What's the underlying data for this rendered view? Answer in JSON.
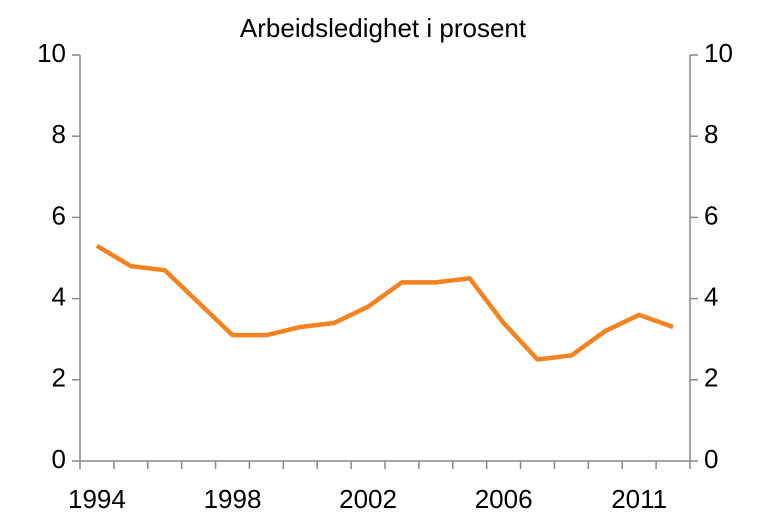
{
  "chart_data": {
    "type": "line",
    "title": "Arbeidsledighet i prosent",
    "categories": [
      "1994",
      null,
      null,
      null,
      "1998",
      null,
      null,
      null,
      "2002",
      null,
      null,
      null,
      "2006",
      null,
      null,
      null,
      "2011",
      null
    ],
    "series": [
      {
        "name": "Arbeidsledighet",
        "color": "#f5821f",
        "values": [
          5.3,
          4.8,
          4.7,
          3.9,
          3.1,
          3.1,
          3.3,
          3.4,
          3.8,
          4.4,
          4.4,
          4.5,
          3.4,
          2.5,
          2.6,
          3.2,
          3.6,
          3.3
        ]
      }
    ],
    "ylim": [
      0,
      10
    ],
    "yticks": [
      0,
      2,
      4,
      6,
      8,
      10
    ],
    "y2lim": [
      0,
      10
    ],
    "y2ticks": [
      0,
      2,
      4,
      6,
      8,
      10
    ],
    "grid": false
  }
}
